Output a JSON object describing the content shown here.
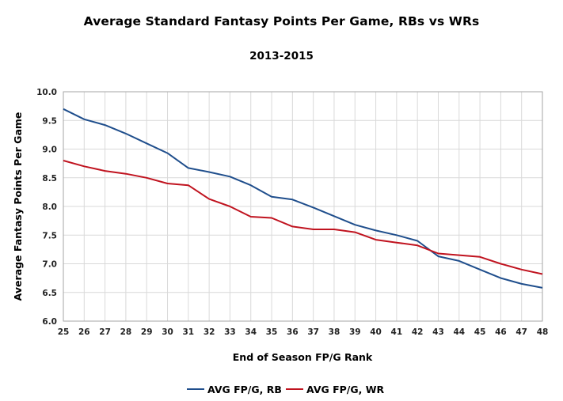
{
  "chart_data": {
    "type": "line",
    "title": "Average Standard Fantasy Points Per Game, RBs vs WRs",
    "subtitle": "2013-2015",
    "xlabel": "End of Season FP/G Rank",
    "ylabel": "Average Fantasy Points Per Game",
    "x": [
      25,
      26,
      27,
      28,
      29,
      30,
      31,
      32,
      33,
      34,
      35,
      36,
      37,
      38,
      39,
      40,
      41,
      42,
      43,
      44,
      45,
      46,
      47,
      48
    ],
    "x_tick_labels": [
      "25",
      "26",
      "27",
      "28",
      "29",
      "30",
      "31",
      "32",
      "33",
      "34",
      "35",
      "36",
      "37",
      "38",
      "39",
      "40",
      "41",
      "42",
      "43",
      "44",
      "45",
      "46",
      "47",
      "48"
    ],
    "ylim": [
      6.0,
      10.0
    ],
    "y_tick_labels": [
      "6.0",
      "6.5",
      "7.0",
      "7.5",
      "8.0",
      "8.5",
      "9.0",
      "9.5",
      "10.0"
    ],
    "grid": true,
    "legend_position": "bottom",
    "series": [
      {
        "name": "AVG FP/G, RB",
        "color": "#1f4e8c",
        "values": [
          9.7,
          9.52,
          9.42,
          9.27,
          9.1,
          8.93,
          8.67,
          8.6,
          8.52,
          8.37,
          8.17,
          8.12,
          7.98,
          7.83,
          7.68,
          7.58,
          7.5,
          7.4,
          7.13,
          7.05,
          6.9,
          6.75,
          6.65,
          6.58
        ]
      },
      {
        "name": "AVG FP/G, WR",
        "color": "#c0131f",
        "values": [
          8.8,
          8.7,
          8.62,
          8.57,
          8.5,
          8.4,
          8.37,
          8.13,
          8.0,
          7.82,
          7.8,
          7.65,
          7.6,
          7.6,
          7.55,
          7.42,
          7.37,
          7.32,
          7.18,
          7.15,
          7.12,
          7.0,
          6.9,
          6.82
        ]
      }
    ]
  }
}
